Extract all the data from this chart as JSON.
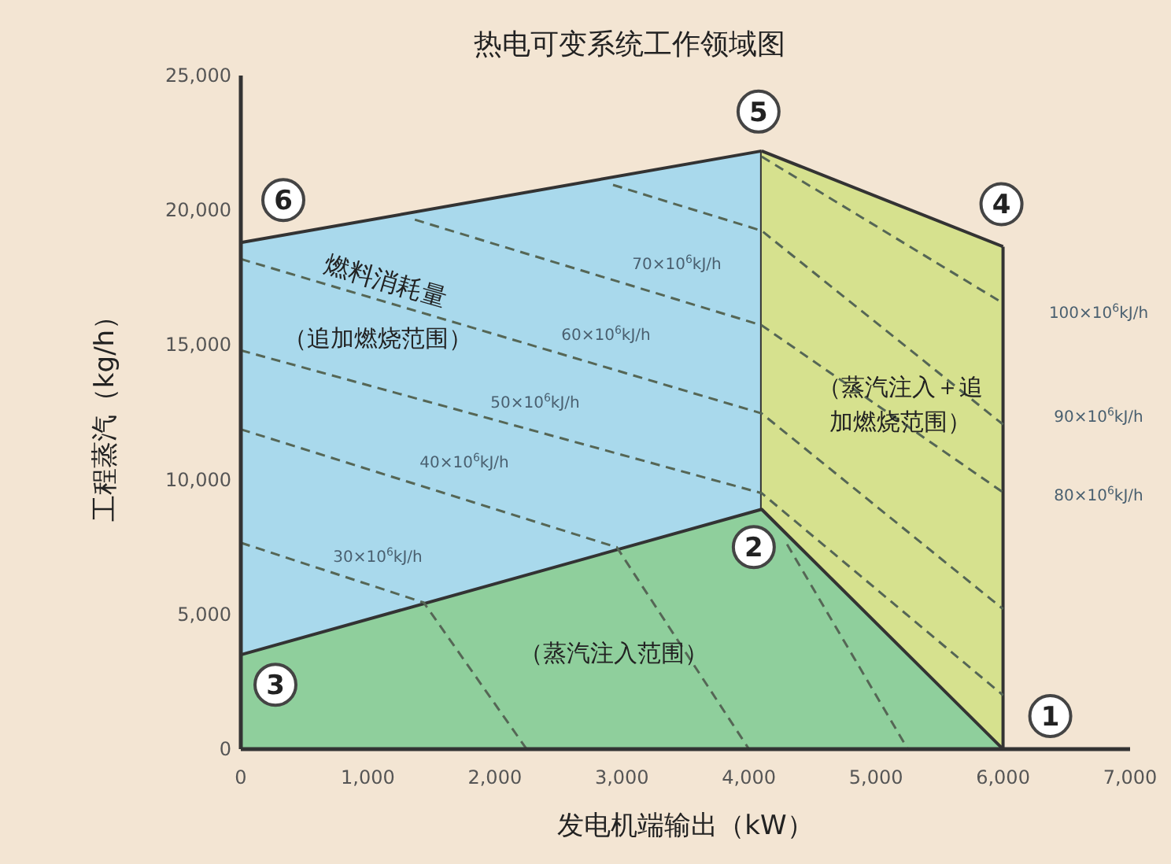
{
  "chart_data": {
    "type": "area",
    "title": "热电可变系统工作领域图",
    "xlabel": "发电机端输出（kW）",
    "ylabel": "工程蒸汽（kg/h）",
    "xlim": [
      0,
      7000
    ],
    "ylim": [
      0,
      25000
    ],
    "xticks": [
      0,
      {
        "value": 1000,
        "label": "1,000"
      },
      {
        "value": 2000,
        "label": "2,000"
      },
      {
        "value": 3000,
        "label": "3,000"
      },
      {
        "value": 4000,
        "label": "4,000"
      },
      {
        "value": 5000,
        "label": "5,000"
      },
      {
        "value": 6000,
        "label": "6,000"
      },
      {
        "value": 7000,
        "label": "7,000"
      }
    ],
    "yticks": [
      0,
      {
        "value": 5000,
        "label": "5,000"
      },
      {
        "value": 10000,
        "label": "10,000"
      },
      {
        "value": 15000,
        "label": "15,000"
      },
      {
        "value": 20000,
        "label": "20,000"
      },
      {
        "value": 25000,
        "label": "25,000"
      }
    ],
    "series": [
      {
        "color": "#a9d9ec",
        "x": [
          0,
          4100
        ],
        "values": [
          18800,
          22200
        ]
      },
      {
        "color": "#d6e18e",
        "x": [
          4100,
          6000
        ],
        "values": [
          22200,
          18650
        ]
      },
      {
        "color": "#8fcf9c",
        "x": [
          0,
          4100,
          6000
        ],
        "values": [
          3500,
          8900,
          0
        ]
      },
      {
        "type": "line",
        "color": "#556655",
        "line_style": "dashed",
        "x": [
          4100,
          6000
        ],
        "values": [
          21990,
          16550
        ]
      },
      {
        "type": "line",
        "color": "#556655",
        "line_style": "dashed",
        "x": [
          2930,
          4100,
          6000
        ],
        "values": [
          20940,
          19240,
          12050
        ]
      },
      {
        "type": "line",
        "color": "#556655",
        "line_style": "dashed",
        "x": [
          1370,
          4100,
          6000
        ],
        "values": [
          19650,
          15730,
          9530
        ]
      },
      {
        "type": "line",
        "color": "#556655",
        "line_style": "dashed",
        "x": [
          0,
          4100,
          6000
        ],
        "values": [
          18190,
          12460,
          5200
        ]
      },
      {
        "type": "line",
        "color": "#556655",
        "line_style": "dashed",
        "x": [
          0,
          4100,
          6000
        ],
        "values": [
          14800,
          9500,
          2000
        ]
      },
      {
        "type": "line",
        "color": "#556655",
        "line_style": "dashed",
        "x": [
          0,
          2960,
          4000
        ],
        "values": [
          11870,
          7490,
          0
        ]
      },
      {
        "type": "line",
        "color": "#556655",
        "line_style": "dashed",
        "x": [
          0,
          1440,
          2250
        ],
        "values": [
          7660,
          5440,
          0
        ]
      },
      {
        "type": "line",
        "color": "#556655",
        "line_style": "dashed",
        "x": [
          4300,
          5250
        ],
        "values": [
          7600,
          0
        ]
      }
    ],
    "annotations": [
      "70×10$^{6}$kJ/h",
      "60×10$^{6}$kJ/h",
      "50×10$^{6}$kJ/h",
      "40×10$^{6}$kJ/h",
      "30×10$^{6}$kJ/h",
      "100×10$^{6}$kJ/h",
      "90×10$^{6}$kJ/h",
      "80×10$^{6}$kJ/h",
      "燃料消耗量",
      "（追加燃烧范围）",
      "（蒸汽注入范围）",
      "（蒸汽注入＋追加燃烧范围）",
      {
        "text": "1",
        "x": 6000,
        "y": 0
      },
      {
        "text": "2",
        "x": 4100,
        "y": 8900
      },
      {
        "text": "3",
        "x": 0,
        "y": 3500
      },
      {
        "text": "4",
        "x": 6000,
        "y": 18650
      },
      {
        "text": "5",
        "x": 4100,
        "y": 22200
      },
      {
        "text": "6",
        "x": 0,
        "y": 18800
      }
    ]
  }
}
